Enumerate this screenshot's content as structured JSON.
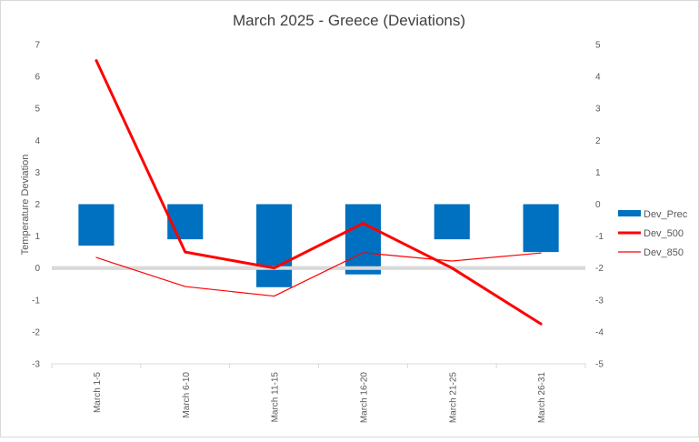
{
  "chart_data": {
    "type": "bar",
    "title": "March 2025 - Greece (Deviations)",
    "ylabel": "Temperature Deviation",
    "y2label": "",
    "categories": [
      "March 1-5",
      "March 6-10",
      "March 11-15",
      "March 16-20",
      "March 21-25",
      "March 26-31"
    ],
    "ylim": [
      -3,
      7
    ],
    "y_ticks": [
      -3,
      -2,
      -1,
      0,
      1,
      2,
      3,
      4,
      5,
      6,
      7
    ],
    "y2lim": [
      -5,
      5
    ],
    "y2_ticks": [
      -5,
      -4,
      -3,
      -2,
      -1,
      0,
      1,
      2,
      3,
      4,
      5
    ],
    "grid": false,
    "legend_position": "right",
    "series": [
      {
        "name": "Dev_Prec",
        "kind": "bar",
        "axis": "y2",
        "color": "#0070C0",
        "values": [
          -1.3,
          -1.1,
          -2.6,
          -2.2,
          -1.1,
          -1.5
        ]
      },
      {
        "name": "Dev_500",
        "kind": "line",
        "axis": "y",
        "color": "#FF0000",
        "width": 3,
        "values": [
          6.5,
          0.5,
          0.0,
          1.4,
          0.0,
          -1.75
        ]
      },
      {
        "name": "Dev_850",
        "kind": "line",
        "axis": "y",
        "color": "#FF0000",
        "width": 1.2,
        "values": [
          0.33,
          -0.58,
          -0.88,
          0.48,
          0.22,
          0.47
        ]
      }
    ]
  }
}
